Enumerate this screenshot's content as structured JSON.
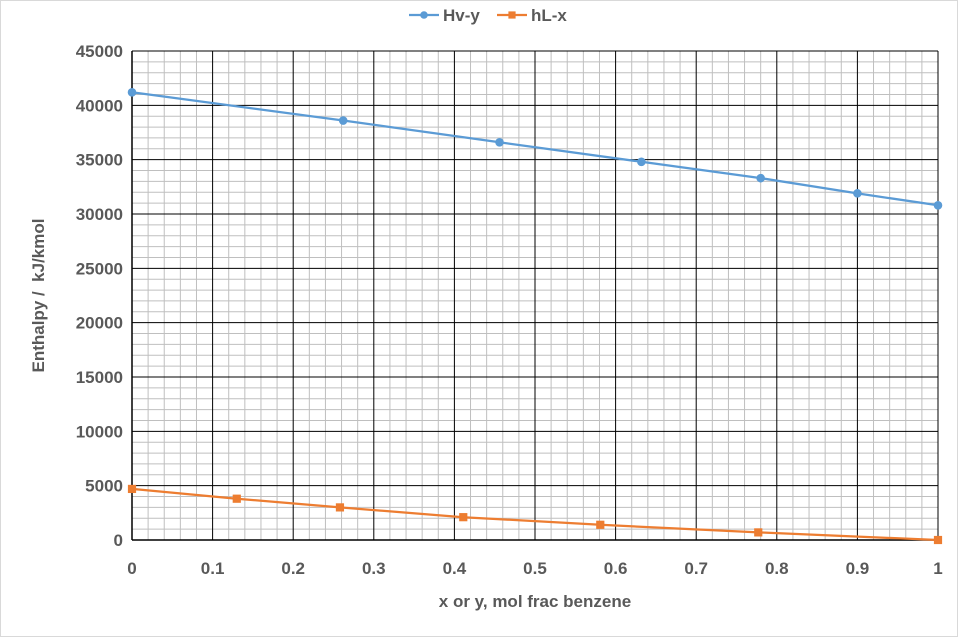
{
  "chart_data": {
    "type": "line",
    "title": "",
    "xlabel": "x or y, mol frac benzene",
    "ylabel": "Enthalpy /  kJ/kmol",
    "xlim": [
      0,
      1
    ],
    "ylim": [
      0,
      45000
    ],
    "x_ticks": [
      "0",
      "0.1",
      "0.2",
      "0.3",
      "0.4",
      "0.5",
      "0.6",
      "0.7",
      "0.8",
      "0.9",
      "1"
    ],
    "y_ticks": [
      "0",
      "5000",
      "10000",
      "15000",
      "20000",
      "25000",
      "30000",
      "35000",
      "40000",
      "45000"
    ],
    "grid": true,
    "legend_position": "top",
    "series": [
      {
        "name": "Hv-y",
        "color": "#5b9bd5",
        "marker": "circle",
        "points": [
          {
            "x": 0,
            "y": 41200
          },
          {
            "x": 0.262,
            "y": 38600
          },
          {
            "x": 0.456,
            "y": 36600
          },
          {
            "x": 0.632,
            "y": 34800
          },
          {
            "x": 0.78,
            "y": 33300
          },
          {
            "x": 0.9,
            "y": 31900
          },
          {
            "x": 1.0,
            "y": 30800
          }
        ]
      },
      {
        "name": "hL-x",
        "color": "#ed7d31",
        "marker": "square",
        "points": [
          {
            "x": 0,
            "y": 4700
          },
          {
            "x": 0.13,
            "y": 3800
          },
          {
            "x": 0.258,
            "y": 3000
          },
          {
            "x": 0.411,
            "y": 2100
          },
          {
            "x": 0.581,
            "y": 1400
          },
          {
            "x": 0.777,
            "y": 700
          },
          {
            "x": 1.0,
            "y": 0
          }
        ]
      }
    ]
  }
}
